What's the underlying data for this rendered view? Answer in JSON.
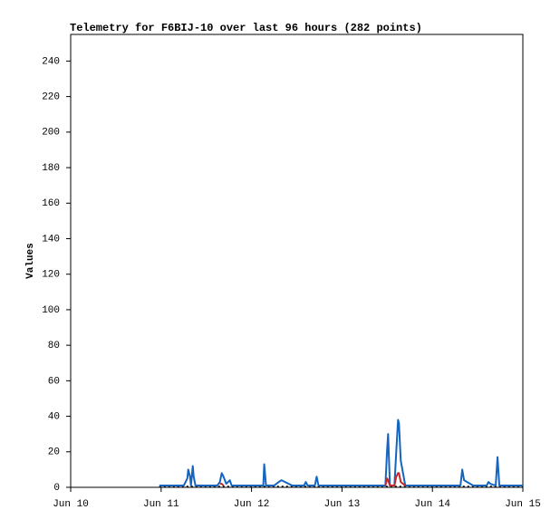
{
  "chart_data": {
    "type": "line",
    "title": "Telemetry for F6BIJ-10 over last 96 hours (282 points)",
    "y_label": "Values",
    "xlim": [
      10,
      15
    ],
    "xticks": [
      {
        "value": 10,
        "label": "Jun 10"
      },
      {
        "value": 11,
        "label": "Jun 11"
      },
      {
        "value": 12,
        "label": "Jun 12"
      },
      {
        "value": 13,
        "label": "Jun 13"
      },
      {
        "value": 14,
        "label": "Jun 14"
      },
      {
        "value": 15,
        "label": "Jun 15"
      }
    ],
    "ylim": [
      0,
      255
    ],
    "yticks": [
      0,
      20,
      40,
      60,
      80,
      100,
      120,
      140,
      160,
      180,
      200,
      220,
      240
    ],
    "grid": false,
    "x": [
      10.98,
      11.05,
      11.15,
      11.25,
      11.29,
      11.3,
      11.32,
      11.33,
      11.35,
      11.36,
      11.38,
      11.45,
      11.55,
      11.62,
      11.65,
      11.67,
      11.69,
      11.72,
      11.76,
      11.78,
      11.85,
      11.95,
      12.05,
      12.13,
      12.14,
      12.16,
      12.25,
      12.3,
      12.33,
      12.45,
      12.58,
      12.6,
      12.62,
      12.7,
      12.72,
      12.74,
      12.85,
      13.0,
      13.2,
      13.4,
      13.48,
      13.5,
      13.51,
      13.53,
      13.58,
      13.6,
      13.62,
      13.63,
      13.65,
      13.7,
      13.85,
      14.0,
      14.2,
      14.31,
      14.33,
      14.35,
      14.45,
      14.6,
      14.62,
      14.64,
      14.7,
      14.72,
      14.74,
      14.85,
      15.0
    ],
    "series": [
      {
        "color": "#000000",
        "dashed": true,
        "values": [
          0.5,
          0.5,
          0.5,
          0.5,
          0.5,
          0.5,
          0.5,
          0.5,
          0.5,
          0.5,
          0.5,
          0.5,
          0.5,
          0.5,
          0.5,
          0.5,
          0.5,
          0.5,
          0.5,
          0.5,
          0.5,
          0.5,
          0.5,
          0.5,
          0.5,
          0.5,
          0.5,
          0.5,
          0.5,
          0.5,
          0.5,
          0.5,
          0.5,
          0.5,
          0.5,
          0.5,
          0.5,
          0.5,
          0.5,
          0.5,
          0.5,
          0.5,
          0.5,
          0.5,
          0.5,
          0.5,
          0.5,
          0.5,
          0.5,
          0.5,
          0.5,
          0.5,
          0.5,
          0.5,
          0.5,
          0.5,
          0.5,
          0.5,
          0.5,
          0.5,
          0.5,
          0.5,
          0.5,
          0.5,
          0.5
        ]
      },
      {
        "color": "#1565c0",
        "dashed": false,
        "values": [
          1,
          1,
          1,
          1,
          5,
          10,
          6,
          1,
          12,
          6,
          1,
          1,
          1,
          1,
          3,
          8,
          6,
          2,
          4,
          1,
          1,
          1,
          1,
          1,
          13,
          1,
          1,
          3,
          4,
          1,
          1,
          3,
          1,
          1,
          6,
          1,
          1,
          1,
          1,
          1,
          1,
          22,
          30,
          1,
          1,
          20,
          38,
          36,
          15,
          1,
          1,
          1,
          1,
          1,
          10,
          4,
          1,
          1,
          3,
          2,
          1,
          17,
          1,
          1,
          1
        ]
      },
      {
        "color": "#c62828",
        "dashed": false,
        "values": [
          null,
          null,
          null,
          null,
          null,
          null,
          null,
          null,
          null,
          null,
          null,
          null,
          null,
          null,
          2,
          2,
          1,
          null,
          null,
          null,
          null,
          null,
          null,
          null,
          null,
          null,
          null,
          null,
          null,
          null,
          null,
          null,
          null,
          null,
          null,
          null,
          null,
          null,
          null,
          null,
          1,
          5,
          4,
          1,
          1,
          6,
          8,
          8,
          3,
          1,
          null,
          null,
          null,
          null,
          null,
          null,
          null,
          null,
          null,
          null,
          null,
          null,
          null,
          null,
          null
        ]
      }
    ]
  }
}
